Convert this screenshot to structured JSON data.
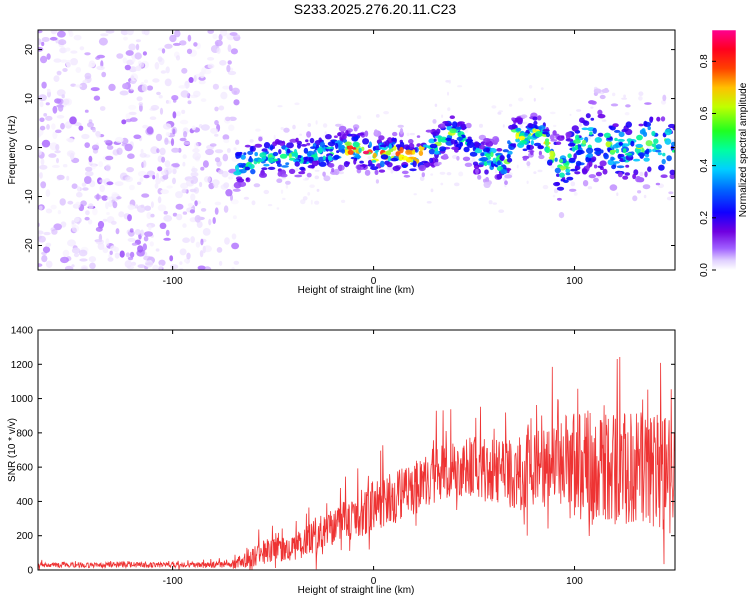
{
  "title": "S233.2025.276.20.11.C23",
  "chart_data": [
    {
      "type": "heatmap",
      "title": "S233.2025.276.20.11.C23",
      "xlabel": "Height of straight line (km)",
      "ylabel": "Frequency (Hz)",
      "xlim": [
        -167,
        150
      ],
      "ylim": [
        -25,
        24
      ],
      "x_ticks": [
        -100,
        0,
        100
      ],
      "y_ticks": [
        -20,
        -10,
        0,
        10,
        20
      ],
      "x_tick_labels": [
        "-100",
        "0",
        "100"
      ],
      "y_tick_labels": [
        "-20",
        "-10",
        "0",
        "10",
        "20"
      ],
      "colorbar": {
        "label": "Normalized spectral amplitude",
        "range": [
          0,
          0.92
        ],
        "ticks": [
          0.0,
          0.2,
          0.4,
          0.6,
          0.8
        ],
        "tick_labels": [
          "0.0",
          "0.2",
          "0.4",
          "0.6",
          "0.8"
        ],
        "colormap": [
          "#ffffff",
          "#e8d8ff",
          "#b070ff",
          "#6a00e8",
          "#0000ff",
          "#00c8ff",
          "#00ff80",
          "#ffff00",
          "#ff8000",
          "#ff0000",
          "#ff0090"
        ]
      },
      "noise_region_x": [
        -167,
        -68
      ],
      "ridge": {
        "x": [
          -68,
          -55,
          -40,
          -25,
          -10,
          0,
          10,
          20,
          30,
          38,
          45,
          50,
          55,
          60,
          65,
          70,
          75,
          80,
          85,
          90,
          95,
          100,
          110,
          120,
          130,
          140,
          150
        ],
        "y": [
          -4,
          -2,
          -2,
          -1,
          0,
          -1.5,
          -1,
          -2,
          0,
          3,
          2,
          -1,
          -2.5,
          -2,
          -4,
          3,
          1.5,
          3,
          2,
          -3,
          -4,
          0,
          2,
          0,
          0,
          1,
          0
        ]
      }
    },
    {
      "type": "line",
      "xlabel": "Height of straight line (km)",
      "ylabel": "SNR (10 * v/v)",
      "xlim": [
        -167,
        150
      ],
      "ylim": [
        0,
        1400
      ],
      "x_ticks": [
        -100,
        0,
        100
      ],
      "y_ticks": [
        0,
        200,
        400,
        600,
        800,
        1000,
        1200,
        1400
      ],
      "x_tick_labels": [
        "-100",
        "0",
        "100"
      ],
      "y_tick_labels": [
        "0",
        "200",
        "400",
        "600",
        "800",
        "1000",
        "1200",
        "1400"
      ],
      "color": "#ee3333",
      "envelope": {
        "x": [
          -167,
          -70,
          -62,
          -50,
          -40,
          -30,
          -20,
          -10,
          0,
          10,
          20,
          30,
          40,
          50,
          60,
          70,
          80,
          90,
          100,
          110,
          120,
          130,
          140,
          150
        ],
        "mean": [
          30,
          30,
          80,
          120,
          120,
          200,
          250,
          300,
          380,
          420,
          470,
          560,
          580,
          600,
          570,
          560,
          560,
          590,
          620,
          600,
          580,
          580,
          560,
          590
        ],
        "spread": [
          15,
          18,
          70,
          70,
          70,
          110,
          120,
          130,
          150,
          150,
          160,
          170,
          170,
          180,
          190,
          210,
          240,
          280,
          330,
          340,
          330,
          340,
          360,
          380
        ]
      }
    }
  ]
}
